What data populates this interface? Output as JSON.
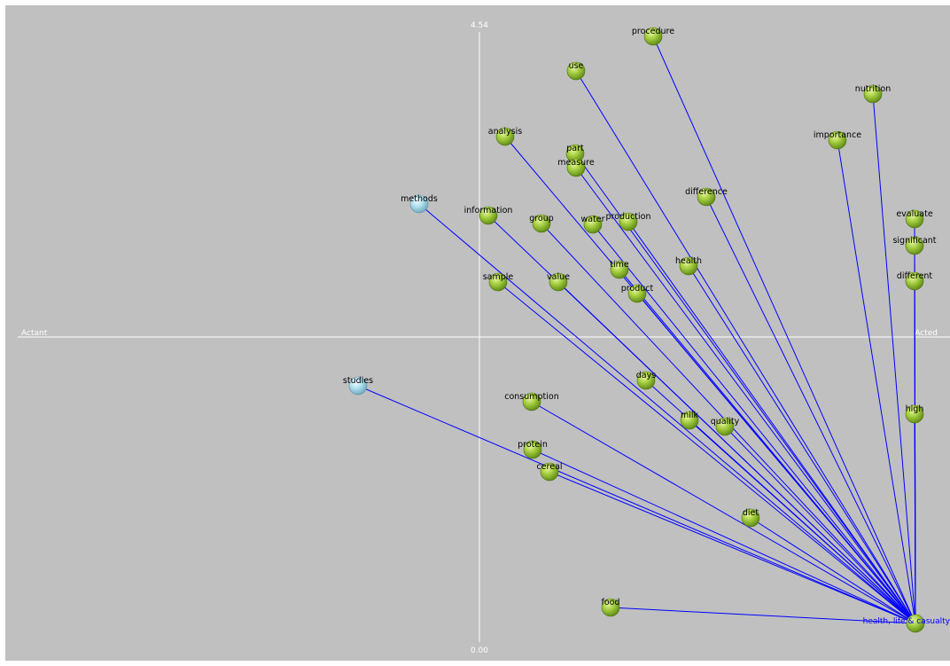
{
  "axes": {
    "left_label": "Actant",
    "right_label": "Acted",
    "top_label": "4.54",
    "bottom_label": "0.00"
  },
  "colors": {
    "background": "#c0c0c0",
    "axis": "#ffffff",
    "edge": "#0000ff",
    "word_node": "#94c13a",
    "actant_node": "#a9dceb"
  },
  "center": {
    "label": "health, life & casualty"
  },
  "nodes": [
    {
      "id": "procedure",
      "label": "procedure",
      "kind": "word"
    },
    {
      "id": "use",
      "label": "use",
      "kind": "word"
    },
    {
      "id": "nutrition",
      "label": "nutrition",
      "kind": "word"
    },
    {
      "id": "analysis",
      "label": "analysis",
      "kind": "word"
    },
    {
      "id": "importance",
      "label": "importance",
      "kind": "word"
    },
    {
      "id": "part",
      "label": "part",
      "kind": "word"
    },
    {
      "id": "measure",
      "label": "measure",
      "kind": "word"
    },
    {
      "id": "difference",
      "label": "difference",
      "kind": "word"
    },
    {
      "id": "methods",
      "label": "methods",
      "kind": "actant"
    },
    {
      "id": "information",
      "label": "information",
      "kind": "word"
    },
    {
      "id": "group",
      "label": "group",
      "kind": "word"
    },
    {
      "id": "water",
      "label": "water",
      "kind": "word"
    },
    {
      "id": "production",
      "label": "production",
      "kind": "word"
    },
    {
      "id": "evaluate",
      "label": "evaluate",
      "kind": "word"
    },
    {
      "id": "significant",
      "label": "significant",
      "kind": "word"
    },
    {
      "id": "time",
      "label": "time",
      "kind": "word"
    },
    {
      "id": "health",
      "label": "health",
      "kind": "word"
    },
    {
      "id": "sample",
      "label": "sample",
      "kind": "word"
    },
    {
      "id": "value",
      "label": "value",
      "kind": "word"
    },
    {
      "id": "different",
      "label": "different",
      "kind": "word"
    },
    {
      "id": "product",
      "label": "product",
      "kind": "word"
    },
    {
      "id": "days",
      "label": "days",
      "kind": "word"
    },
    {
      "id": "studies",
      "label": "studies",
      "kind": "actant"
    },
    {
      "id": "consumption",
      "label": "consumption",
      "kind": "word"
    },
    {
      "id": "milk",
      "label": "milk",
      "kind": "word"
    },
    {
      "id": "quality",
      "label": "quality",
      "kind": "word"
    },
    {
      "id": "high",
      "label": "high",
      "kind": "word"
    },
    {
      "id": "protein",
      "label": "protein",
      "kind": "word"
    },
    {
      "id": "cereal",
      "label": "cereal",
      "kind": "word"
    },
    {
      "id": "diet",
      "label": "diet",
      "kind": "word"
    },
    {
      "id": "food",
      "label": "food",
      "kind": "word"
    }
  ]
}
